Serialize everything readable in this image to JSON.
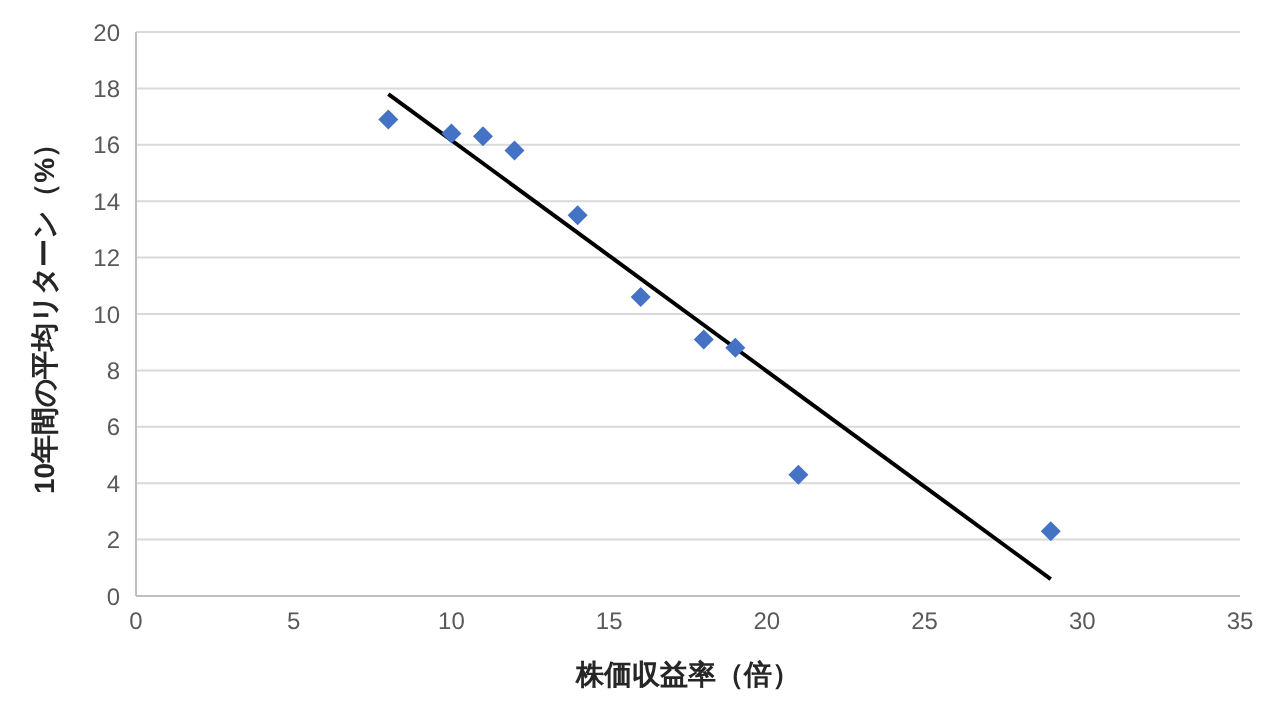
{
  "chart_data": {
    "type": "scatter",
    "xlabel": "株価収益率（倍）",
    "ylabel": "10年間の平均リターン（%）",
    "xlim": [
      0,
      35
    ],
    "xticks": [
      0,
      5,
      10,
      15,
      20,
      25,
      30,
      35
    ],
    "ylim": [
      0,
      20
    ],
    "yticks": [
      0,
      2,
      4,
      6,
      8,
      10,
      12,
      14,
      16,
      18,
      20
    ],
    "grid": "y",
    "series": [
      {
        "color": "#4472c4",
        "marker": "diamond",
        "x": [
          8,
          10,
          11,
          12,
          14,
          16,
          18,
          19,
          21,
          29
        ],
        "values": [
          16.9,
          16.4,
          16.3,
          15.8,
          13.5,
          10.6,
          9.1,
          8.8,
          4.3,
          2.3
        ]
      },
      {
        "type": "line",
        "color": "#000000",
        "marker": "none",
        "line_style": "solid",
        "x": [
          8,
          29
        ],
        "values": [
          17.8,
          0.6
        ]
      }
    ]
  }
}
